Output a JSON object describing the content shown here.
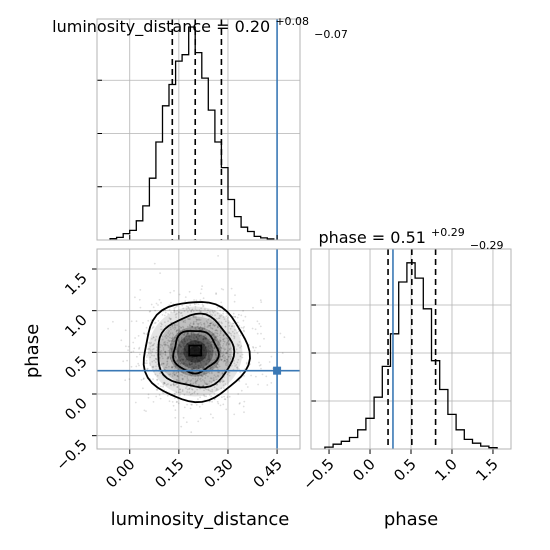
{
  "chart_data": {
    "type": "corner",
    "parameters": [
      "luminosity_distance",
      "phase"
    ],
    "truth_color": "#3a78b5",
    "panels": [
      {
        "type": "histogram",
        "title": {
          "base": "luminosity_distance = 0.20",
          "sup": "+0.08",
          "sub": "−0.07"
        },
        "xlim": [
          -0.1,
          0.52
        ],
        "quantiles": [
          0.13,
          0.2,
          0.28
        ],
        "truth": 0.45,
        "bins": [
          [
            -0.06,
            -0.04,
            0.006
          ],
          [
            -0.04,
            -0.02,
            0.012
          ],
          [
            -0.02,
            0.0,
            0.03
          ],
          [
            0.0,
            0.02,
            0.045
          ],
          [
            0.02,
            0.04,
            0.09
          ],
          [
            0.04,
            0.06,
            0.16
          ],
          [
            0.06,
            0.08,
            0.29
          ],
          [
            0.08,
            0.1,
            0.46
          ],
          [
            0.1,
            0.12,
            0.63
          ],
          [
            0.12,
            0.14,
            0.73
          ],
          [
            0.14,
            0.16,
            0.84
          ],
          [
            0.16,
            0.18,
            0.87
          ],
          [
            0.18,
            0.2,
            1.0
          ],
          [
            0.2,
            0.22,
            0.88
          ],
          [
            0.22,
            0.24,
            0.76
          ],
          [
            0.24,
            0.26,
            0.61
          ],
          [
            0.26,
            0.28,
            0.46
          ],
          [
            0.28,
            0.3,
            0.34
          ],
          [
            0.3,
            0.32,
            0.19
          ],
          [
            0.32,
            0.34,
            0.11
          ],
          [
            0.34,
            0.36,
            0.06
          ],
          [
            0.36,
            0.38,
            0.04
          ],
          [
            0.38,
            0.4,
            0.017
          ],
          [
            0.4,
            0.42,
            0.01
          ],
          [
            0.42,
            0.44,
            0.005
          ]
        ]
      },
      {
        "type": "histogram",
        "title": {
          "base": "phase = 0.51",
          "sup": "+0.29",
          "sub": "−0.29"
        },
        "xlim": [
          -0.72,
          1.72
        ],
        "quantiles": [
          0.22,
          0.51,
          0.8
        ],
        "truth": 0.28,
        "bins": [
          [
            -0.55,
            -0.45,
            0.01
          ],
          [
            -0.45,
            -0.35,
            0.025
          ],
          [
            -0.35,
            -0.25,
            0.04
          ],
          [
            -0.25,
            -0.15,
            0.06
          ],
          [
            -0.15,
            -0.05,
            0.1
          ],
          [
            -0.05,
            0.05,
            0.16
          ],
          [
            0.05,
            0.15,
            0.27
          ],
          [
            0.15,
            0.25,
            0.43
          ],
          [
            0.25,
            0.35,
            0.6
          ],
          [
            0.35,
            0.45,
            0.87
          ],
          [
            0.45,
            0.55,
            0.97
          ],
          [
            0.55,
            0.65,
            0.89
          ],
          [
            0.65,
            0.75,
            0.73
          ],
          [
            0.75,
            0.85,
            0.46
          ],
          [
            0.85,
            0.95,
            0.31
          ],
          [
            0.95,
            1.05,
            0.18
          ],
          [
            1.05,
            1.15,
            0.1
          ],
          [
            1.15,
            1.25,
            0.05
          ],
          [
            1.25,
            1.35,
            0.03
          ],
          [
            1.35,
            1.45,
            0.015
          ],
          [
            1.45,
            1.55,
            0.007
          ]
        ]
      },
      {
        "type": "scatter-contour",
        "xlabel": "luminosity_distance",
        "ylabel": "phase",
        "xlim": [
          -0.1,
          0.52
        ],
        "ylim": [
          -0.66,
          1.74
        ],
        "x_ticks": [
          0.0,
          0.15,
          0.3,
          0.45
        ],
        "x_tick_labels": [
          "0.00",
          "0.15",
          "0.30",
          "0.45"
        ],
        "y_ticks": [
          -0.5,
          0.0,
          0.5,
          1.0,
          1.5
        ],
        "y_tick_labels": [
          "−0.5",
          "0.0",
          "0.5",
          "1.0",
          "1.5"
        ],
        "truth": [
          0.45,
          0.28
        ],
        "sample_count": 1600,
        "sample_mean": [
          0.2,
          0.51
        ],
        "sample_sd": [
          0.08,
          0.3
        ]
      },
      {
        "xlabel": "phase",
        "x_ticks": [
          -0.5,
          0.0,
          0.5,
          1.0,
          1.5
        ],
        "x_tick_labels": [
          "−0.5",
          "0.0",
          "0.5",
          "1.0",
          "1.5"
        ]
      }
    ]
  }
}
